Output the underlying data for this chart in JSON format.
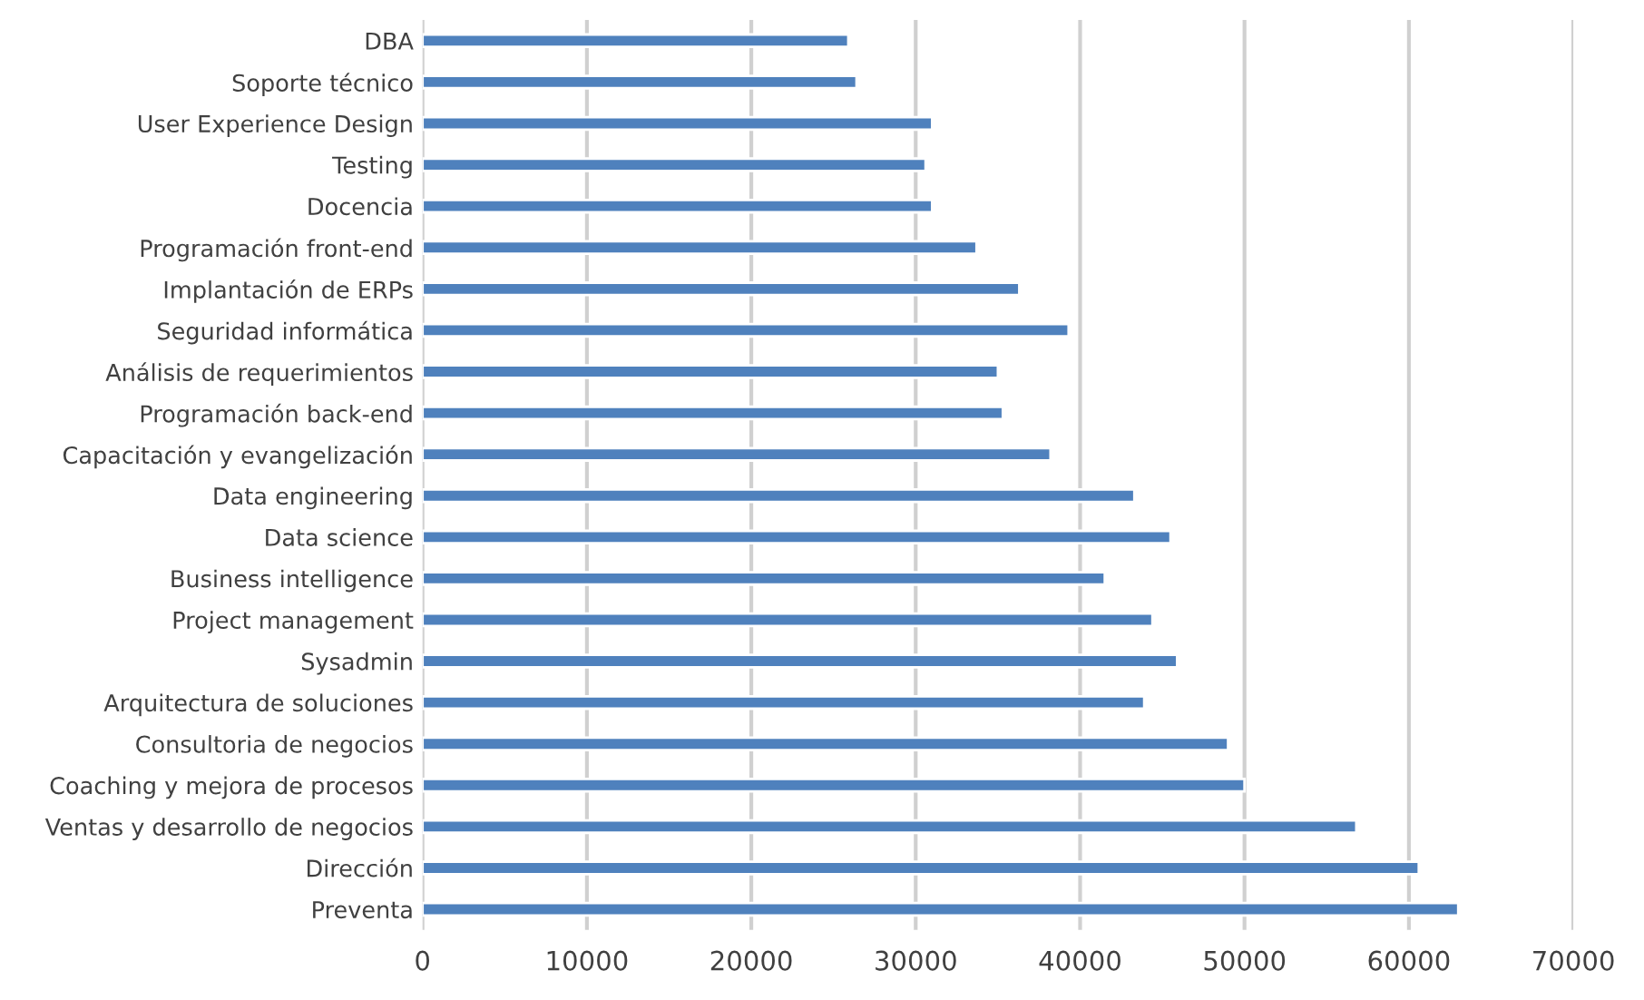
{
  "chart_data": {
    "type": "bar",
    "orientation": "horizontal",
    "categories": [
      "DBA",
      "Soporte técnico",
      "User Experience Design",
      "Testing",
      "Docencia",
      "Programación front-end",
      "Implantación de ERPs",
      "Seguridad informática",
      "Análisis de requerimientos",
      "Programación back-end",
      "Capacitación y evangelización",
      "Data engineering",
      "Data science",
      "Business intelligence",
      "Project management",
      "Sysadmin",
      "Arquitectura de soluciones",
      "Consultoria de negocios",
      "Coaching y mejora de procesos",
      "Ventas y desarrollo de negocios",
      "Dirección",
      "Preventa"
    ],
    "values": [
      25900,
      26400,
      31000,
      30600,
      31000,
      33700,
      36300,
      39300,
      35000,
      35300,
      38200,
      43300,
      45500,
      41500,
      44400,
      45900,
      43900,
      49000,
      50000,
      56800,
      60600,
      63000
    ],
    "color": "#4f81bd",
    "xlim": [
      0,
      70000
    ],
    "xticks": [
      0,
      10000,
      20000,
      30000,
      40000,
      50000,
      60000,
      70000
    ],
    "grid": "x",
    "legend": false
  }
}
